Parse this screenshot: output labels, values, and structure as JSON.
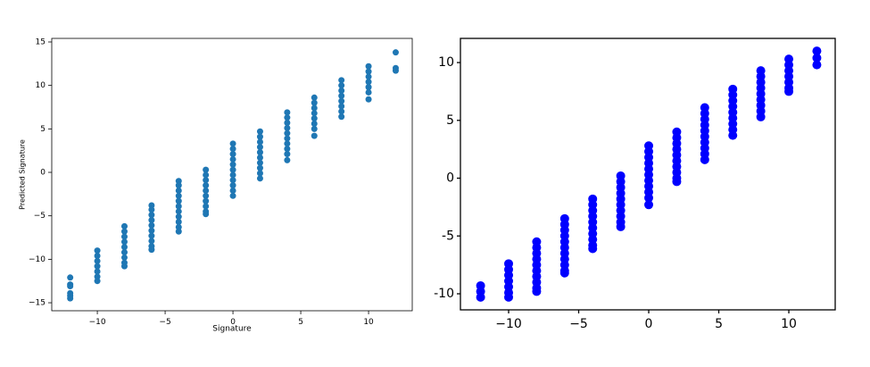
{
  "chart_data": [
    {
      "type": "scatter",
      "x_label": "Signature",
      "y_label": "Predicted Signature",
      "color": "#1f77b4",
      "xlim": [
        -13.36,
        13.22
      ],
      "ylim": [
        -15.92,
        15.41
      ],
      "xticks": [
        {
          "value": -10,
          "label": "−10"
        },
        {
          "value": -5,
          "label": "−5"
        },
        0,
        5,
        10
      ],
      "yticks": [
        {
          "value": -15,
          "label": "−15"
        },
        {
          "value": -10,
          "label": "−10"
        },
        {
          "value": -5,
          "label": "−5"
        },
        0,
        5,
        10,
        15
      ],
      "x": [
        -12,
        -12,
        -12,
        -12,
        -12,
        -12,
        -10,
        -10,
        -10,
        -10,
        -10,
        -10,
        -10,
        -8,
        -8,
        -8,
        -8,
        -8,
        -8,
        -8,
        -8,
        -8,
        -6,
        -6,
        -6,
        -6,
        -6,
        -6,
        -6,
        -6,
        -6,
        -6,
        -4,
        -4,
        -4,
        -4,
        -4,
        -4,
        -4,
        -4,
        -4,
        -4,
        -4,
        -2,
        -2,
        -2,
        -2,
        -2,
        -2,
        -2,
        -2,
        -2,
        -2,
        0,
        0,
        0,
        0,
        0,
        0,
        0,
        0,
        0,
        0,
        0,
        2,
        2,
        2,
        2,
        2,
        2,
        2,
        2,
        2,
        2,
        4,
        4,
        4,
        4,
        4,
        4,
        4,
        4,
        4,
        4,
        6,
        6,
        6,
        6,
        6,
        6,
        6,
        6,
        8,
        8,
        8,
        8,
        8,
        8,
        8,
        8,
        10,
        10,
        10,
        10,
        10,
        10,
        10,
        12,
        12,
        12
      ],
      "y": [
        -12.1,
        -12.9,
        -13.1,
        -13.9,
        -14.2,
        -14.5,
        -9,
        -9.6,
        -10.2,
        -10.8,
        -11.4,
        -12,
        -12.5,
        -6.2,
        -6.8,
        -7.4,
        -8,
        -8.6,
        -9.2,
        -9.8,
        -10.4,
        -10.8,
        -3.8,
        -4.3,
        -4.9,
        -5.5,
        -6.1,
        -6.7,
        -7.3,
        -7.9,
        -8.5,
        -8.9,
        -1,
        -1.5,
        -2.1,
        -2.7,
        -3.3,
        -3.9,
        -4.5,
        -5.1,
        -5.7,
        -6.3,
        -6.8,
        0.3,
        -0.3,
        -0.9,
        -1.5,
        -2.1,
        -2.7,
        -3.3,
        -3.9,
        -4.5,
        -4.8,
        3.3,
        2.7,
        2.1,
        1.5,
        0.9,
        0.3,
        -0.3,
        -0.9,
        -1.5,
        -2.1,
        -2.7,
        4.7,
        4.1,
        3.5,
        2.9,
        2.3,
        1.7,
        1.1,
        0.5,
        -0.1,
        -0.7,
        6.9,
        6.3,
        5.7,
        5.1,
        4.5,
        3.9,
        3.3,
        2.7,
        2.1,
        1.4,
        8.6,
        8,
        7.4,
        6.8,
        6.2,
        5.6,
        5,
        4.2,
        10.6,
        10,
        9.4,
        8.8,
        8.2,
        7.6,
        7,
        6.4,
        12.2,
        11.6,
        11,
        10.4,
        9.8,
        9.2,
        8.4,
        13.8,
        12,
        11.7
      ]
    },
    {
      "type": "scatter",
      "color": "#0000ff",
      "xlim": [
        -13.44,
        13.31
      ],
      "ylim": [
        -11.39,
        12.09
      ],
      "xticks": [
        {
          "value": -10,
          "label": "−10"
        },
        {
          "value": -5,
          "label": "−5"
        },
        0,
        5,
        10
      ],
      "yticks": [
        {
          "value": -10,
          "label": "-10"
        },
        {
          "value": -5,
          "label": "-5"
        },
        0,
        5,
        10
      ],
      "x": [
        -12,
        -12,
        -12,
        -10,
        -10,
        -10,
        -10,
        -10,
        -10,
        -10,
        -8,
        -8,
        -8,
        -8,
        -8,
        -8,
        -8,
        -8,
        -8,
        -8,
        -6,
        -6,
        -6,
        -6,
        -6,
        -6,
        -6,
        -6,
        -6,
        -6,
        -6,
        -4,
        -4,
        -4,
        -4,
        -4,
        -4,
        -4,
        -4,
        -4,
        -4,
        -2,
        -2,
        -2,
        -2,
        -2,
        -2,
        -2,
        -2,
        -2,
        -2,
        0,
        0,
        0,
        0,
        0,
        0,
        0,
        0,
        0,
        0,
        0,
        2,
        2,
        2,
        2,
        2,
        2,
        2,
        2,
        2,
        2,
        4,
        4,
        4,
        4,
        4,
        4,
        4,
        4,
        4,
        4,
        6,
        6,
        6,
        6,
        6,
        6,
        6,
        6,
        6,
        8,
        8,
        8,
        8,
        8,
        8,
        8,
        8,
        8,
        10,
        10,
        10,
        10,
        10,
        10,
        10,
        12,
        12,
        12
      ],
      "y": [
        -9.3,
        -9.8,
        -10.3,
        -7.4,
        -7.9,
        -8.4,
        -8.9,
        -9.4,
        -9.9,
        -10.3,
        -5.5,
        -6,
        -6.5,
        -7,
        -7.5,
        -8,
        -8.5,
        -9,
        -9.5,
        -9.8,
        -3.5,
        -4,
        -4.5,
        -5,
        -5.5,
        -6,
        -6.5,
        -7,
        -7.5,
        -8,
        -8.2,
        -1.8,
        -2.3,
        -2.8,
        -3.3,
        -3.8,
        -4.3,
        -4.8,
        -5.3,
        -5.8,
        -6.1,
        0.2,
        -0.3,
        -0.8,
        -1.3,
        -1.8,
        -2.3,
        -2.8,
        -3.3,
        -3.8,
        -4.2,
        2.8,
        2.3,
        1.8,
        1.3,
        0.8,
        0.3,
        -0.2,
        -0.7,
        -1.2,
        -1.7,
        -2.3,
        4,
        3.5,
        3,
        2.5,
        2,
        1.5,
        1,
        0.5,
        0,
        -0.3,
        6.1,
        5.6,
        5.1,
        4.6,
        4.1,
        3.6,
        3.1,
        2.6,
        2.1,
        1.6,
        7.7,
        7.2,
        6.7,
        6.2,
        5.7,
        5.2,
        4.7,
        4.2,
        3.7,
        9.3,
        8.8,
        8.3,
        7.8,
        7.3,
        6.8,
        6.3,
        5.8,
        5.3,
        10.3,
        9.8,
        9.3,
        8.8,
        8.3,
        7.8,
        7.5,
        11,
        10.4,
        9.8
      ]
    }
  ]
}
